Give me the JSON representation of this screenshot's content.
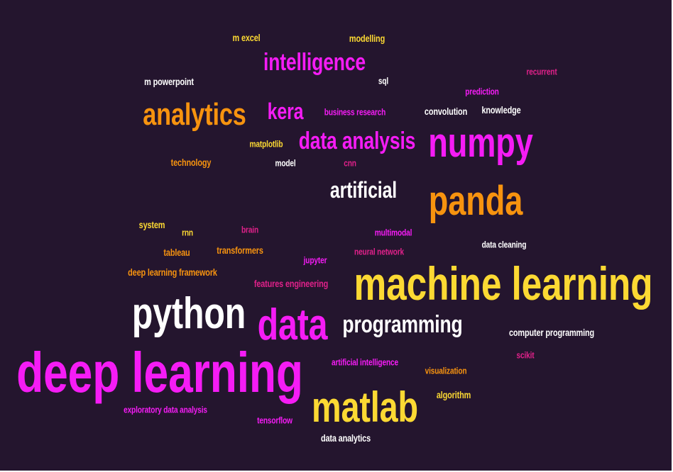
{
  "colors": {
    "background": "#24152e",
    "white": "#ffffff",
    "yellow": "#fcd933",
    "orange": "#f7930f",
    "magenta": "#f51cf5",
    "pink": "#e0218a"
  },
  "words": [
    {
      "text": "m excel",
      "color": "yellow"
    },
    {
      "text": "modelling",
      "color": "yellow"
    },
    {
      "text": "intelligence",
      "color": "magenta"
    },
    {
      "text": "recurrent",
      "color": "pink"
    },
    {
      "text": "m powerpoint",
      "color": "white"
    },
    {
      "text": "sql",
      "color": "white"
    },
    {
      "text": "prediction",
      "color": "magenta"
    },
    {
      "text": "analytics",
      "color": "orange"
    },
    {
      "text": "kera",
      "color": "magenta"
    },
    {
      "text": "business research",
      "color": "magenta"
    },
    {
      "text": "convolution",
      "color": "white"
    },
    {
      "text": "knowledge",
      "color": "white"
    },
    {
      "text": "data analysis",
      "color": "magenta"
    },
    {
      "text": "numpy",
      "color": "magenta"
    },
    {
      "text": "matplotlib",
      "color": "yellow"
    },
    {
      "text": "technology",
      "color": "orange"
    },
    {
      "text": "model",
      "color": "white"
    },
    {
      "text": "cnn",
      "color": "pink"
    },
    {
      "text": "artificial",
      "color": "white"
    },
    {
      "text": "panda",
      "color": "orange"
    },
    {
      "text": "system",
      "color": "yellow"
    },
    {
      "text": "rnn",
      "color": "yellow"
    },
    {
      "text": "brain",
      "color": "pink"
    },
    {
      "text": "multimodal",
      "color": "magenta"
    },
    {
      "text": "data cleaning",
      "color": "white"
    },
    {
      "text": "tableau",
      "color": "orange"
    },
    {
      "text": "transformers",
      "color": "orange"
    },
    {
      "text": "neural network",
      "color": "pink"
    },
    {
      "text": "jupyter",
      "color": "magenta"
    },
    {
      "text": "deep learning framework",
      "color": "orange"
    },
    {
      "text": "machine learning",
      "color": "yellow"
    },
    {
      "text": "features engineering",
      "color": "pink"
    },
    {
      "text": "python",
      "color": "white"
    },
    {
      "text": "data",
      "color": "magenta"
    },
    {
      "text": "programming",
      "color": "white"
    },
    {
      "text": "computer programming",
      "color": "white"
    },
    {
      "text": "scikit",
      "color": "pink"
    },
    {
      "text": "deep learning",
      "color": "magenta"
    },
    {
      "text": "artificial intelligence",
      "color": "magenta"
    },
    {
      "text": "visualization",
      "color": "orange"
    },
    {
      "text": "algorithm",
      "color": "yellow"
    },
    {
      "text": "matlab",
      "color": "yellow"
    },
    {
      "text": "exploratory data analysis",
      "color": "magenta"
    },
    {
      "text": "tensorflow",
      "color": "magenta"
    },
    {
      "text": "data analytics",
      "color": "white"
    }
  ]
}
